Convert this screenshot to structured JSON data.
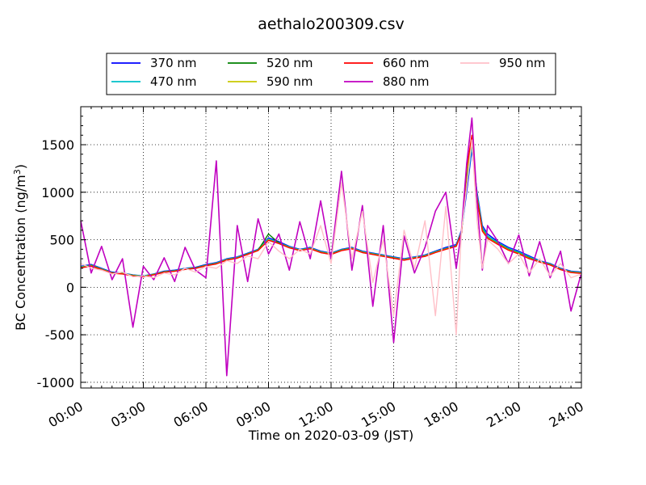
{
  "chart_data": {
    "type": "line",
    "title": "aethalo200309.csv",
    "xlabel": "Time on 2020-03-09 (JST)",
    "ylabel": "BC Concentration (ng/m",
    "ylabel_sup": "3",
    "ylabel_end": ")",
    "xlim_hours": [
      0,
      24
    ],
    "ylim": [
      -1060,
      1900
    ],
    "x_ticks": [
      "00:00",
      "03:00",
      "06:00",
      "09:00",
      "12:00",
      "15:00",
      "18:00",
      "21:00",
      "24:00"
    ],
    "y_ticks": [
      "-1000",
      "-500",
      "0",
      "500",
      "1000",
      "1500"
    ],
    "grid": true,
    "legend": {
      "placement": "top",
      "columns": 4
    },
    "x_hours": [
      0.0,
      0.5,
      1.0,
      1.5,
      2.0,
      2.5,
      3.0,
      3.5,
      4.0,
      4.5,
      5.0,
      5.5,
      6.0,
      6.5,
      7.0,
      7.5,
      8.0,
      8.5,
      9.0,
      9.5,
      10.0,
      10.5,
      11.0,
      11.5,
      12.0,
      12.5,
      13.0,
      13.5,
      14.0,
      14.5,
      15.0,
      15.5,
      16.0,
      16.5,
      17.0,
      17.5,
      18.0,
      18.25,
      18.5,
      18.75,
      19.0,
      19.25,
      19.5,
      20.0,
      20.5,
      21.0,
      21.5,
      22.0,
      22.5,
      23.0,
      23.5,
      24.0
    ],
    "series": [
      {
        "name": "370 nm",
        "color": "#0000ff",
        "values": [
          220,
          240,
          200,
          160,
          150,
          130,
          120,
          140,
          170,
          180,
          200,
          210,
          240,
          260,
          300,
          320,
          360,
          400,
          520,
          480,
          430,
          400,
          420,
          380,
          360,
          400,
          420,
          380,
          360,
          340,
          320,
          300,
          320,
          340,
          380,
          420,
          450,
          600,
          1000,
          1450,
          1000,
          650,
          560,
          480,
          420,
          380,
          330,
          280,
          250,
          200,
          170,
          160
        ]
      },
      {
        "name": "470 nm",
        "color": "#00c0c8",
        "values": [
          215,
          235,
          195,
          155,
          148,
          128,
          118,
          138,
          165,
          176,
          196,
          206,
          235,
          255,
          295,
          315,
          355,
          395,
          510,
          470,
          425,
          395,
          415,
          375,
          355,
          395,
          415,
          375,
          355,
          335,
          315,
          295,
          315,
          335,
          375,
          410,
          440,
          590,
          1050,
          1480,
          980,
          630,
          540,
          470,
          410,
          370,
          320,
          275,
          245,
          195,
          165,
          155
        ]
      },
      {
        "name": "520 nm",
        "color": "#008000",
        "values": [
          210,
          230,
          190,
          152,
          145,
          125,
          115,
          135,
          162,
          172,
          192,
          202,
          230,
          250,
          290,
          310,
          350,
          390,
          560,
          465,
          420,
          390,
          410,
          370,
          350,
          390,
          410,
          370,
          350,
          330,
          310,
          290,
          310,
          330,
          370,
          405,
          435,
          580,
          1150,
          1520,
          950,
          610,
          525,
          460,
          400,
          360,
          310,
          270,
          240,
          190,
          160,
          150
        ]
      },
      {
        "name": "590 nm",
        "color": "#c8c800",
        "values": [
          208,
          226,
          188,
          150,
          143,
          123,
          113,
          133,
          160,
          170,
          190,
          200,
          228,
          248,
          288,
          308,
          348,
          388,
          500,
          462,
          418,
          388,
          408,
          368,
          348,
          388,
          408,
          368,
          348,
          328,
          308,
          288,
          308,
          328,
          368,
          402,
          432,
          575,
          1200,
          1550,
          940,
          600,
          520,
          455,
          395,
          355,
          305,
          268,
          238,
          188,
          158,
          148
        ]
      },
      {
        "name": "660 nm",
        "color": "#ff0000",
        "values": [
          205,
          222,
          185,
          148,
          140,
          120,
          110,
          130,
          158,
          168,
          188,
          198,
          226,
          246,
          286,
          306,
          346,
          386,
          495,
          460,
          415,
          385,
          405,
          365,
          345,
          385,
          405,
          365,
          345,
          325,
          305,
          285,
          305,
          325,
          365,
          400,
          430,
          570,
          1250,
          1600,
          930,
          590,
          515,
          450,
          390,
          350,
          300,
          265,
          235,
          185,
          155,
          145
        ]
      },
      {
        "name": "880 nm",
        "color": "#c000c0",
        "values": [
          700,
          150,
          430,
          80,
          300,
          -420,
          220,
          80,
          310,
          60,
          420,
          180,
          100,
          1330,
          -930,
          650,
          60,
          720,
          350,
          560,
          180,
          690,
          300,
          910,
          300,
          1220,
          180,
          860,
          -200,
          650,
          -580,
          540,
          150,
          420,
          800,
          1000,
          200,
          600,
          1300,
          1780,
          900,
          180,
          650,
          480,
          250,
          550,
          120,
          480,
          100,
          380,
          -250,
          150
        ]
      },
      {
        "name": "950 nm",
        "color": "#ffc0c8",
        "values": [
          250,
          200,
          180,
          140,
          160,
          110,
          120,
          100,
          150,
          130,
          200,
          160,
          220,
          200,
          280,
          250,
          330,
          300,
          480,
          380,
          300,
          400,
          350,
          650,
          250,
          1100,
          300,
          800,
          50,
          500,
          -300,
          600,
          200,
          700,
          -300,
          850,
          -500,
          600,
          1050,
          1550,
          700,
          200,
          500,
          400,
          250,
          350,
          150,
          300,
          120,
          250,
          100,
          140
        ]
      }
    ]
  }
}
